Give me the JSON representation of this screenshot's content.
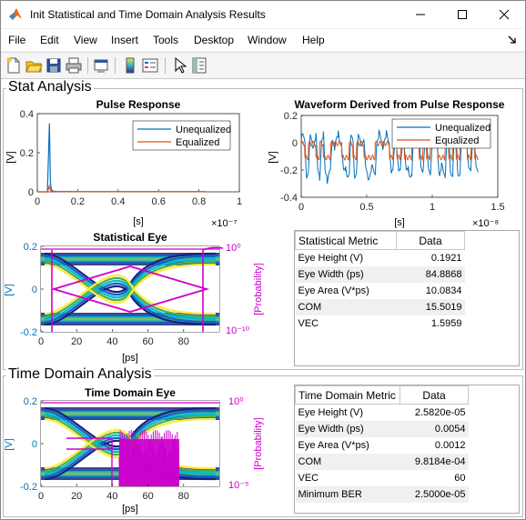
{
  "window": {
    "title": "Init Statistical and Time Domain Analysis Results"
  },
  "menu": {
    "items": [
      "File",
      "Edit",
      "View",
      "Insert",
      "Tools",
      "Desktop",
      "Window",
      "Help"
    ]
  },
  "toolbar": {
    "icons": [
      "new-figure-icon",
      "open-icon",
      "save-icon",
      "print-icon",
      "link-icon",
      "colorbar-icon",
      "legend-icon",
      "pointer-icon",
      "property-editor-icon"
    ]
  },
  "colors": {
    "blue": "#0072bd",
    "orange": "#d95319",
    "magenta": "#cc00cc",
    "accent": "#0072bd"
  },
  "stat_panel": {
    "title": "Stat Analysis",
    "table": {
      "headers": [
        "Statistical Metric",
        "Data"
      ],
      "rows": [
        [
          "Eye Height (V)",
          "0.1921"
        ],
        [
          "Eye Width (ps)",
          "84.8868"
        ],
        [
          "Eye Area (V*ps)",
          "10.0834"
        ],
        [
          "COM",
          "15.5019"
        ],
        [
          "VEC",
          "1.5959"
        ]
      ]
    }
  },
  "time_panel": {
    "title": "Time Domain Analysis",
    "table": {
      "headers": [
        "Time Domain Metric",
        "Data"
      ],
      "rows": [
        [
          "Eye Height (V)",
          "2.5820e-05"
        ],
        [
          "Eye Width (ps)",
          "0.0054"
        ],
        [
          "Eye Area (V*ps)",
          "0.0012"
        ],
        [
          "COM",
          "9.8184e-04"
        ],
        [
          "VEC",
          "60"
        ],
        [
          "Minimum BER",
          "2.5000e-05"
        ]
      ]
    }
  },
  "chart_data": [
    {
      "type": "line",
      "title": "Pulse Response",
      "xlabel": "[s]",
      "ylabel": "[V]",
      "x_multiplier": "×10⁻⁷",
      "xlim": [
        0,
        1
      ],
      "ylim": [
        0,
        0.4
      ],
      "xticks": [
        "0",
        "0.2",
        "0.4",
        "0.6",
        "0.8",
        "1"
      ],
      "yticks": [
        "0",
        "0.2",
        "0.4"
      ],
      "legend": "top-right",
      "series": [
        {
          "name": "Unequalized",
          "x": [
            0,
            0.05,
            0.06,
            0.065,
            0.07,
            0.08,
            0.1,
            0.2,
            0.4,
            0.6,
            0.83
          ],
          "y": [
            0,
            0,
            0.35,
            0.05,
            0.01,
            0.003,
            0.002,
            0.001,
            0.001,
            0.001,
            0.001
          ]
        },
        {
          "name": "Equalized",
          "x": [
            0,
            0.05,
            0.06,
            0.065,
            0.07,
            0.08,
            0.1,
            0.2,
            0.4,
            0.6,
            0.83
          ],
          "y": [
            0,
            0,
            0.03,
            0.01,
            0.004,
            0.002,
            0.001,
            0.001,
            0.001,
            0.001,
            0.001
          ]
        }
      ]
    },
    {
      "type": "line",
      "title": "Waveform Derived from Pulse Response",
      "xlabel": "[s]",
      "ylabel": "[V]",
      "x_multiplier": "×10⁻⁸",
      "xlim": [
        0,
        1.5
      ],
      "ylim": [
        -0.4,
        0.3
      ],
      "xticks": [
        "0",
        "0.5",
        "1",
        "1.5"
      ],
      "yticks": [
        "-0.4",
        "-0.2",
        "0",
        "0.2"
      ],
      "legend": "top-right",
      "series": [
        {
          "name": "Unequalized"
        },
        {
          "name": "Equalized"
        }
      ]
    },
    {
      "type": "heatmap",
      "title": "Statistical Eye",
      "xlabel": "[ps]",
      "ylabel": "[V]",
      "y2label": "[Probability]",
      "xlim": [
        0,
        100
      ],
      "ylim": [
        -0.2,
        0.2
      ],
      "xticks": [
        "0",
        "20",
        "40",
        "60",
        "80"
      ],
      "yticks": [
        "-0.2",
        "0",
        "0.2"
      ],
      "y2ticks": [
        "10⁰",
        "10⁻¹⁰"
      ]
    },
    {
      "type": "heatmap",
      "title": "Time Domain Eye",
      "xlabel": "[ps]",
      "ylabel": "[V]",
      "y2label": "[Probability]",
      "xlim": [
        0,
        100
      ],
      "ylim": [
        -0.2,
        0.2
      ],
      "xticks": [
        "0",
        "20",
        "40",
        "60",
        "80"
      ],
      "yticks": [
        "-0.2",
        "0",
        "0.2"
      ],
      "y2ticks": [
        "10⁰",
        "10⁻⁵"
      ]
    }
  ]
}
